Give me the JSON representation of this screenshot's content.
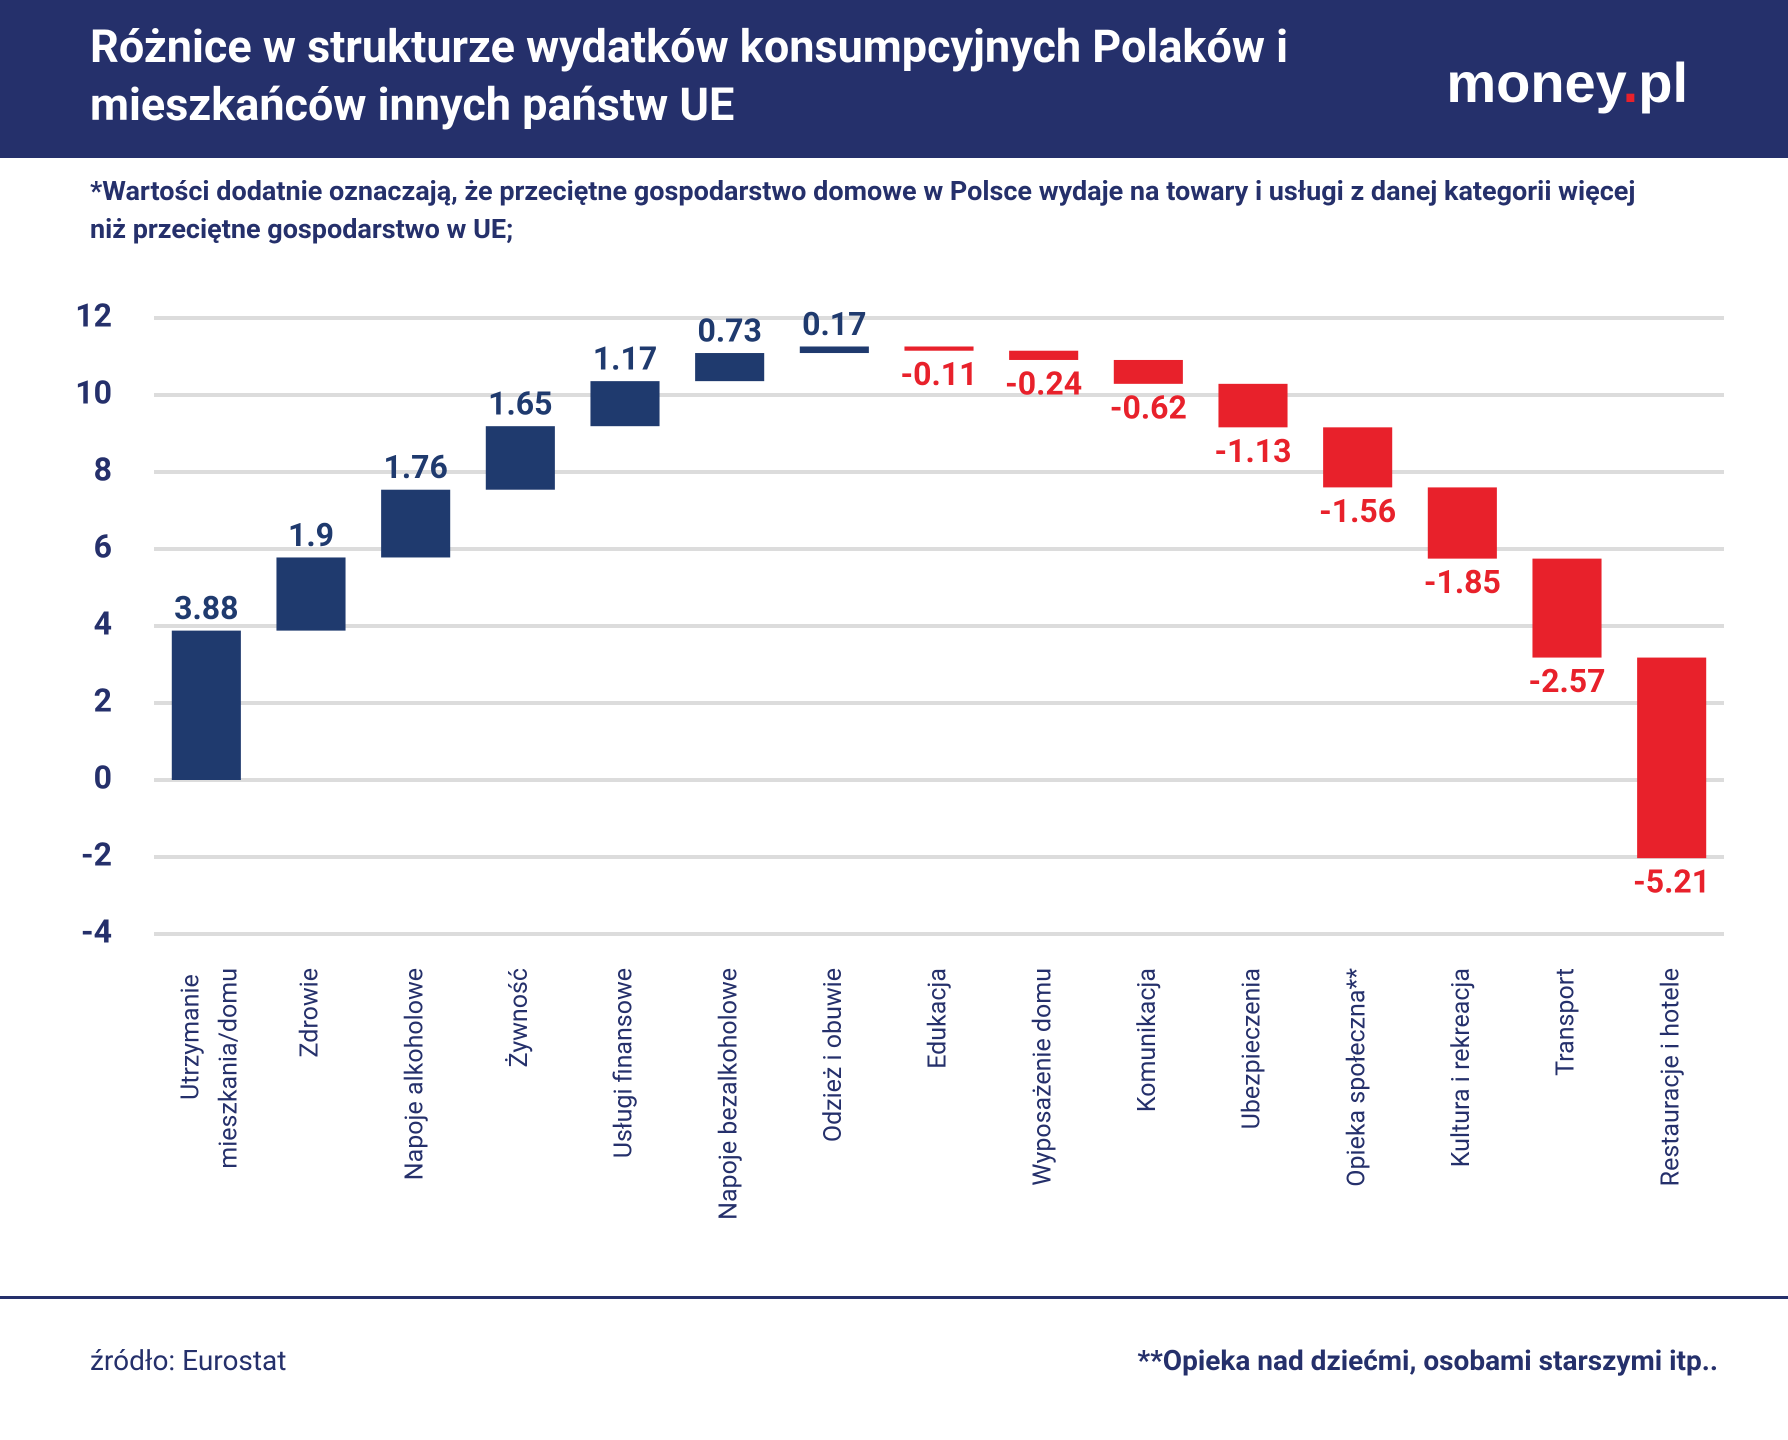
{
  "header": {
    "title": "Różnice w strukturze wydatków konsumpcyjnych Polaków i mieszkańców innych państw UE",
    "logo": "money.pl"
  },
  "chart_data": {
    "type": "waterfall",
    "subtitle": "*Wartości dodatnie oznaczają, że przeciętne gospodarstwo domowe w Polsce wydaje na towary i usługi z danej kategorii więcej niż przeciętne gospodarstwo w UE;",
    "categories": [
      "Utrzymanie mieszkania/domu",
      "Zdrowie",
      "Napoje alkoholowe",
      "Żywność",
      "Usługi finansowe",
      "Napoje bezalkoholowe",
      "Odzież i obuwie",
      "Edukacja",
      "Wyposażenie domu",
      "Komunikacja",
      "Ubezpieczenia",
      "Opieka społeczna**",
      "Kultura i rekreacja",
      "Transport",
      "Restauracje i hotele"
    ],
    "values": [
      3.88,
      1.9,
      1.76,
      1.65,
      1.17,
      0.73,
      0.17,
      -0.11,
      -0.24,
      -0.62,
      -1.13,
      -1.56,
      -1.85,
      -2.57,
      -5.21
    ],
    "positive_color": "#1f3a6e",
    "negative_color": "#e8212b",
    "ylim": [
      -4,
      12
    ],
    "yticks": [
      -4,
      -2,
      0,
      2,
      4,
      6,
      8,
      10,
      12
    ],
    "grid": true
  },
  "footer": {
    "source": "źródło: Eurostat",
    "note": "**Opieka nad dziećmi, osobami starszymi itp.."
  }
}
